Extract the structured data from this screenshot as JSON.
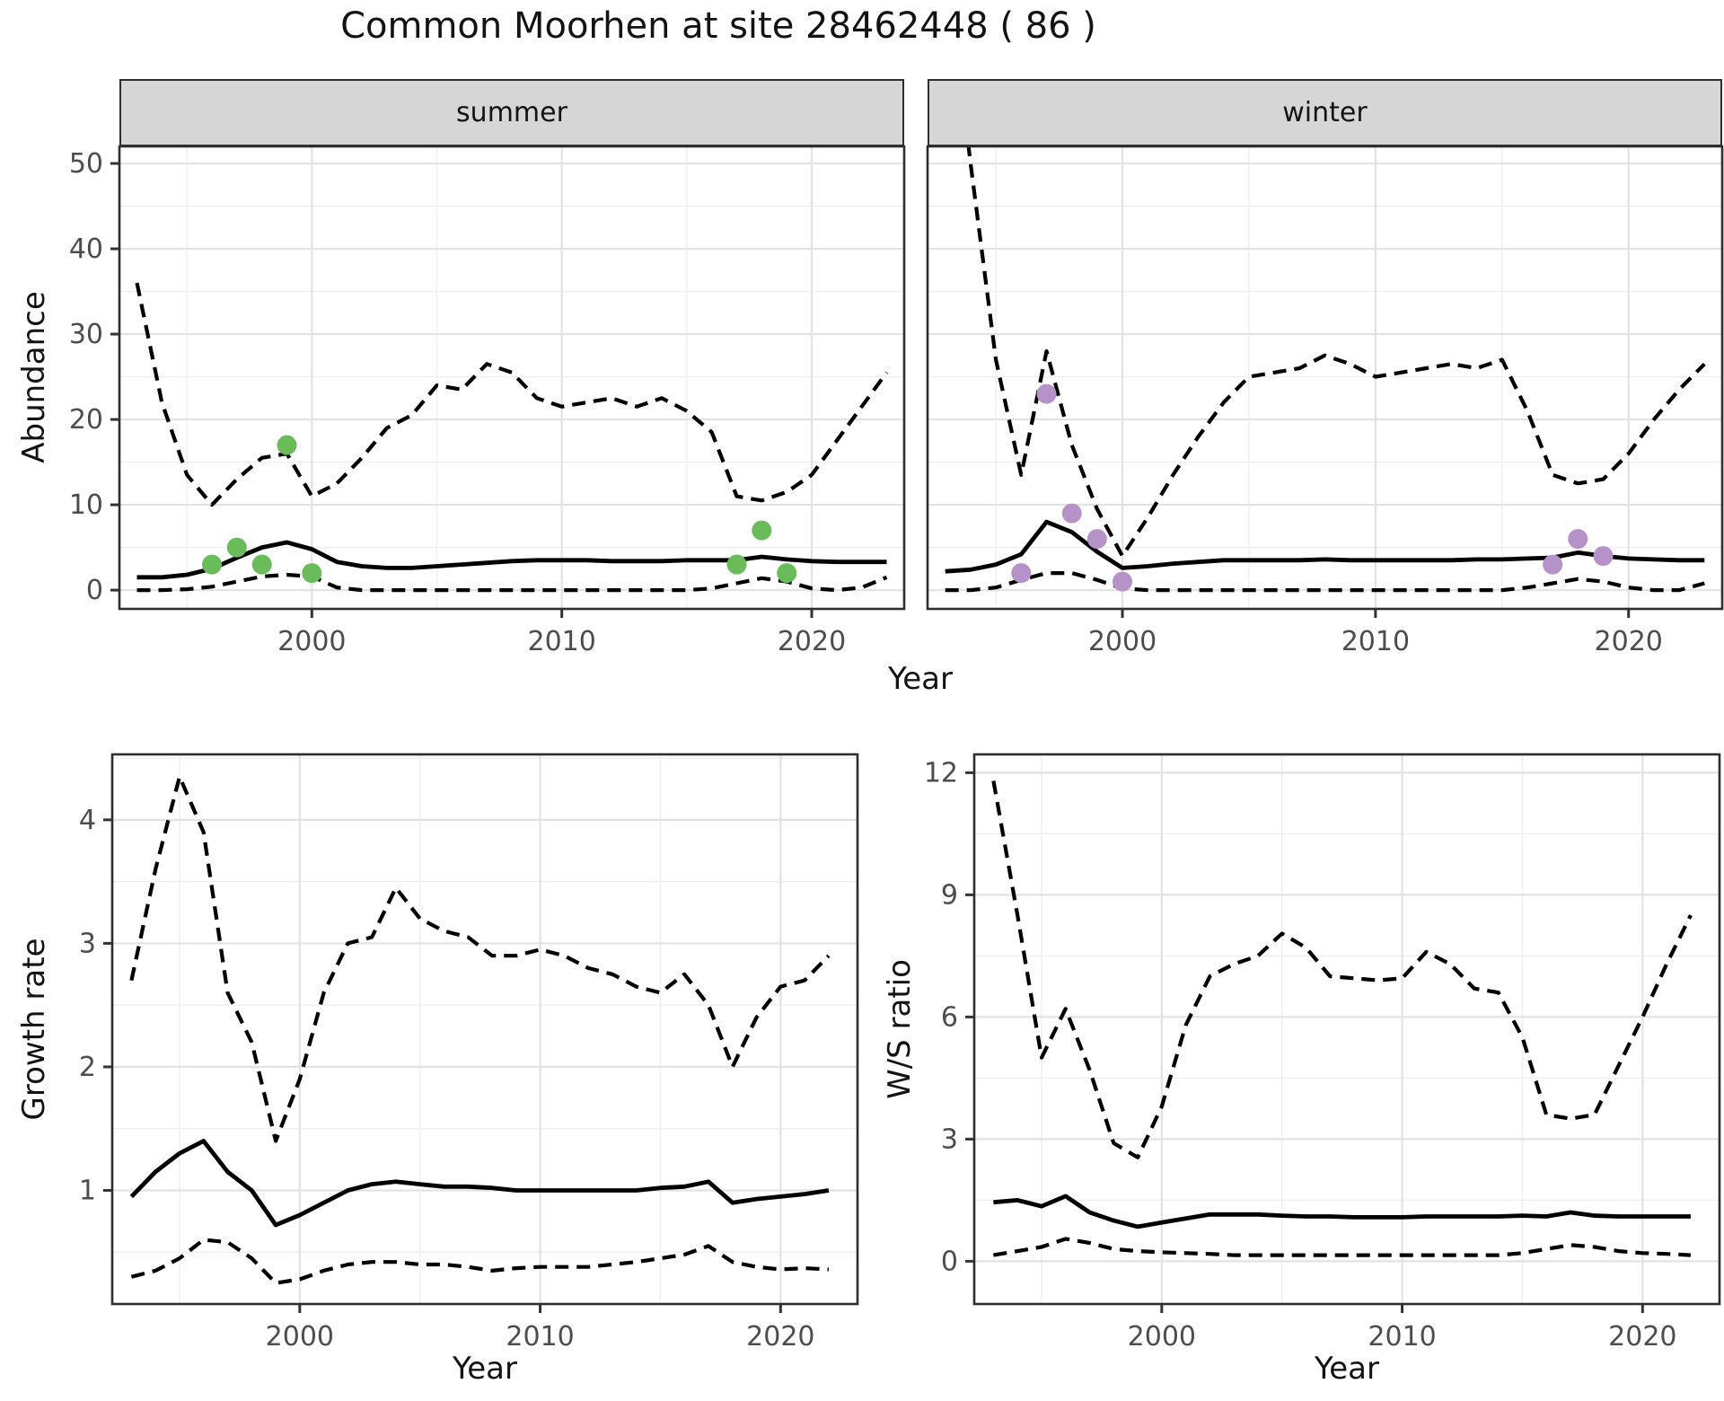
{
  "title": "Common Moorhen at site 28462448 ( 86 )",
  "facets": {
    "summer_label": "summer",
    "winter_label": "winter"
  },
  "axis_titles": {
    "abundance": "Abundance",
    "year_top": "Year",
    "growth": "Growth rate",
    "ws": "W/S ratio",
    "year_growth": "Year",
    "year_ws": "Year"
  },
  "colors": {
    "observed_summer": "#6abc5b",
    "observed_winter": "#b592c8",
    "line": "#000000",
    "strip_bg": "#d6d6d6",
    "panel_border": "#2e2e2e",
    "grid_major": "#e2e2e2",
    "grid_minor": "#efefef",
    "axis_text": "#4d4d4d"
  },
  "chart_data": [
    {
      "type": "line",
      "facet": "summer",
      "xlabel": "Year",
      "ylabel": "Abundance",
      "xlim": [
        1992.3,
        2023.7
      ],
      "ylim": [
        -2.2,
        52.0
      ],
      "xticks": [
        2000,
        2010,
        2020
      ],
      "xticks_minor": [
        1995,
        2005,
        2015
      ],
      "yticks": [
        0,
        10,
        20,
        30,
        40,
        50
      ],
      "yticks_minor": [
        5,
        15,
        25,
        35,
        45
      ],
      "x": [
        1993,
        1994,
        1995,
        1996,
        1997,
        1998,
        1999,
        2000,
        2001,
        2002,
        2003,
        2004,
        2005,
        2006,
        2007,
        2008,
        2009,
        2010,
        2011,
        2012,
        2013,
        2014,
        2015,
        2016,
        2017,
        2018,
        2019,
        2020,
        2021,
        2022,
        2023
      ],
      "series": [
        {
          "name": "upper 95% CI",
          "linetype": "dashed",
          "values": [
            36,
            22,
            13.5,
            10,
            13,
            15.5,
            16,
            11,
            12.5,
            15.5,
            19,
            20.5,
            24,
            23.5,
            26.5,
            25.5,
            22.5,
            21.5,
            22,
            22.5,
            21.5,
            22.5,
            21,
            18.5,
            11,
            10.5,
            11.5,
            13.5,
            17.5,
            21.5,
            25.5
          ]
        },
        {
          "name": "median",
          "linetype": "solid",
          "values": [
            1.5,
            1.5,
            1.8,
            2.5,
            3.8,
            5.0,
            5.6,
            4.8,
            3.3,
            2.8,
            2.6,
            2.6,
            2.8,
            3.0,
            3.2,
            3.4,
            3.5,
            3.5,
            3.5,
            3.4,
            3.4,
            3.4,
            3.5,
            3.5,
            3.5,
            3.9,
            3.6,
            3.4,
            3.3,
            3.3,
            3.3
          ]
        },
        {
          "name": "lower 95% CI",
          "linetype": "dashed",
          "values": [
            0,
            0,
            0.1,
            0.4,
            1.0,
            1.6,
            1.8,
            1.6,
            0.3,
            0,
            0,
            0,
            0,
            0,
            0,
            0,
            0,
            0,
            0,
            0,
            0,
            0,
            0,
            0.2,
            0.8,
            1.4,
            1.0,
            0.2,
            0,
            0.3,
            1.5
          ]
        }
      ],
      "points": {
        "name": "observed summer counts",
        "color": "#6abc5b",
        "x": [
          1996,
          1997,
          1998,
          1999,
          2000,
          2017,
          2018,
          2019
        ],
        "y": [
          3,
          5,
          3,
          17,
          2,
          3,
          7,
          2
        ]
      }
    },
    {
      "type": "line",
      "facet": "winter",
      "xlabel": "Year",
      "ylabel": "Abundance",
      "xlim": [
        1992.3,
        2023.7
      ],
      "ylim": [
        -2.2,
        52.0
      ],
      "xticks": [
        2000,
        2010,
        2020
      ],
      "xticks_minor": [
        1995,
        2005,
        2015
      ],
      "yticks": [
        0,
        10,
        20,
        30,
        40,
        50
      ],
      "yticks_minor": [
        5,
        15,
        25,
        35,
        45
      ],
      "x": [
        1993,
        1994,
        1995,
        1996,
        1997,
        1998,
        1999,
        2000,
        2001,
        2002,
        2003,
        2004,
        2005,
        2006,
        2007,
        2008,
        2009,
        2010,
        2011,
        2012,
        2013,
        2014,
        2015,
        2016,
        2017,
        2018,
        2019,
        2020,
        2021,
        2022,
        2023
      ],
      "series": [
        {
          "name": "upper 95% CI",
          "linetype": "dashed",
          "values": [
            75,
            50,
            27,
            13.5,
            28,
            17,
            9.5,
            4,
            8.5,
            13.5,
            18,
            22,
            25,
            25.5,
            26,
            27.5,
            26.5,
            25,
            25.5,
            26,
            26.5,
            26,
            27,
            21,
            13.5,
            12.5,
            13,
            16,
            20,
            23.5,
            26.5
          ]
        },
        {
          "name": "median",
          "linetype": "solid",
          "values": [
            2.2,
            2.4,
            3.0,
            4.2,
            8.0,
            6.8,
            4.5,
            2.6,
            2.8,
            3.1,
            3.3,
            3.5,
            3.5,
            3.5,
            3.5,
            3.6,
            3.5,
            3.5,
            3.5,
            3.5,
            3.5,
            3.6,
            3.6,
            3.7,
            3.8,
            4.4,
            4.0,
            3.7,
            3.6,
            3.5,
            3.5
          ]
        },
        {
          "name": "lower 95% CI",
          "linetype": "dashed",
          "values": [
            0,
            0,
            0.3,
            1.2,
            2.0,
            2.0,
            1.2,
            0.2,
            0,
            0,
            0,
            0,
            0,
            0,
            0,
            0,
            0,
            0,
            0,
            0,
            0,
            0,
            0,
            0.3,
            0.8,
            1.3,
            1.0,
            0.3,
            0,
            0,
            0.8
          ]
        }
      ],
      "points": {
        "name": "observed winter counts",
        "color": "#b592c8",
        "x": [
          1996,
          1997,
          1998,
          1999,
          2000,
          2017,
          2018,
          2019
        ],
        "y": [
          2,
          23,
          9,
          6,
          1,
          3,
          6,
          4
        ]
      }
    },
    {
      "type": "line",
      "facet": null,
      "xlabel": "Year",
      "ylabel": "Growth rate",
      "xlim": [
        1992.2,
        2023.2
      ],
      "ylim": [
        0.08,
        4.53
      ],
      "xticks": [
        2000,
        2010,
        2020
      ],
      "xticks_minor": [
        1995,
        2005,
        2015
      ],
      "yticks": [
        1,
        2,
        3,
        4
      ],
      "yticks_minor": [
        0.5,
        1.5,
        2.5,
        3.5,
        4.5
      ],
      "x": [
        1993,
        1994,
        1995,
        1996,
        1997,
        1998,
        1999,
        2000,
        2001,
        2002,
        2003,
        2004,
        2005,
        2006,
        2007,
        2008,
        2009,
        2010,
        2011,
        2012,
        2013,
        2014,
        2015,
        2016,
        2017,
        2018,
        2019,
        2020,
        2021,
        2022
      ],
      "series": [
        {
          "name": "upper 95% CI",
          "linetype": "dashed",
          "values": [
            2.7,
            3.6,
            4.35,
            3.9,
            2.6,
            2.2,
            1.4,
            1.9,
            2.6,
            3.0,
            3.05,
            3.45,
            3.2,
            3.1,
            3.05,
            2.9,
            2.9,
            2.95,
            2.9,
            2.8,
            2.75,
            2.65,
            2.6,
            2.75,
            2.5,
            2.0,
            2.4,
            2.65,
            2.7,
            2.9
          ]
        },
        {
          "name": "median",
          "linetype": "solid",
          "values": [
            0.95,
            1.15,
            1.3,
            1.4,
            1.15,
            1.0,
            0.72,
            0.8,
            0.9,
            1.0,
            1.05,
            1.07,
            1.05,
            1.03,
            1.03,
            1.02,
            1.0,
            1.0,
            1.0,
            1.0,
            1.0,
            1.0,
            1.02,
            1.03,
            1.07,
            0.9,
            0.93,
            0.95,
            0.97,
            1.0
          ]
        },
        {
          "name": "lower 95% CI",
          "linetype": "dashed",
          "values": [
            0.3,
            0.35,
            0.45,
            0.6,
            0.58,
            0.45,
            0.25,
            0.28,
            0.35,
            0.4,
            0.42,
            0.42,
            0.4,
            0.4,
            0.38,
            0.35,
            0.37,
            0.38,
            0.38,
            0.38,
            0.4,
            0.42,
            0.45,
            0.48,
            0.55,
            0.42,
            0.38,
            0.36,
            0.37,
            0.36
          ]
        }
      ],
      "points": null
    },
    {
      "type": "line",
      "facet": null,
      "xlabel": "Year",
      "ylabel": "W/S ratio",
      "xlim": [
        1992.2,
        2023.2
      ],
      "ylim": [
        -1.05,
        12.45
      ],
      "xticks": [
        2000,
        2010,
        2020
      ],
      "xticks_minor": [
        1995,
        2005,
        2015
      ],
      "yticks": [
        0,
        3,
        6,
        9,
        12
      ],
      "yticks_minor": [
        1.5,
        4.5,
        7.5,
        10.5
      ],
      "x": [
        1993,
        1994,
        1995,
        1996,
        1997,
        1998,
        1999,
        2000,
        2001,
        2002,
        2003,
        2004,
        2005,
        2006,
        2007,
        2008,
        2009,
        2010,
        2011,
        2012,
        2013,
        2014,
        2015,
        2016,
        2017,
        2018,
        2019,
        2020,
        2021,
        2022
      ],
      "series": [
        {
          "name": "upper 95% CI",
          "linetype": "dashed",
          "values": [
            11.8,
            8.5,
            5.0,
            6.2,
            4.7,
            2.9,
            2.55,
            3.8,
            5.8,
            7.0,
            7.3,
            7.5,
            8.05,
            7.7,
            7.0,
            6.95,
            6.9,
            6.95,
            7.6,
            7.3,
            6.7,
            6.6,
            5.5,
            3.6,
            3.5,
            3.6,
            4.8,
            6.0,
            7.3,
            8.5
          ]
        },
        {
          "name": "median",
          "linetype": "solid",
          "values": [
            1.45,
            1.5,
            1.35,
            1.6,
            1.2,
            1.0,
            0.85,
            0.95,
            1.05,
            1.15,
            1.15,
            1.15,
            1.12,
            1.1,
            1.1,
            1.08,
            1.08,
            1.08,
            1.1,
            1.1,
            1.1,
            1.1,
            1.12,
            1.1,
            1.2,
            1.12,
            1.1,
            1.1,
            1.1,
            1.1
          ]
        },
        {
          "name": "lower 95% CI",
          "linetype": "dashed",
          "values": [
            0.15,
            0.25,
            0.35,
            0.55,
            0.45,
            0.3,
            0.25,
            0.22,
            0.2,
            0.18,
            0.15,
            0.15,
            0.15,
            0.15,
            0.15,
            0.15,
            0.15,
            0.15,
            0.15,
            0.15,
            0.15,
            0.15,
            0.2,
            0.3,
            0.4,
            0.35,
            0.25,
            0.2,
            0.18,
            0.15
          ]
        }
      ],
      "points": null
    }
  ]
}
